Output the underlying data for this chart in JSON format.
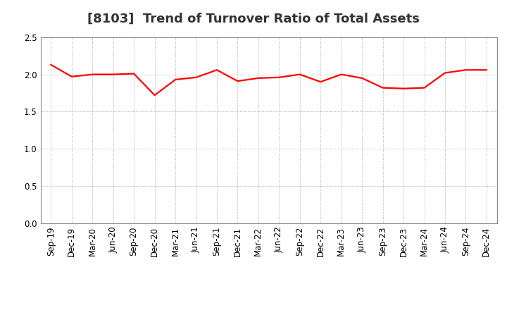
{
  "title": "[8103]  Trend of Turnover Ratio of Total Assets",
  "x_labels": [
    "Sep-19",
    "Dec-19",
    "Mar-20",
    "Jun-20",
    "Sep-20",
    "Dec-20",
    "Mar-21",
    "Jun-21",
    "Sep-21",
    "Dec-21",
    "Mar-22",
    "Jun-22",
    "Sep-22",
    "Dec-22",
    "Mar-23",
    "Jun-23",
    "Sep-23",
    "Dec-23",
    "Mar-24",
    "Jun-24",
    "Sep-24",
    "Dec-24"
  ],
  "values": [
    2.13,
    1.97,
    2.0,
    2.0,
    2.01,
    1.72,
    1.93,
    1.96,
    2.06,
    1.91,
    1.95,
    1.96,
    2.0,
    1.9,
    2.0,
    1.95,
    1.82,
    1.81,
    1.82,
    2.02,
    2.06,
    2.06
  ],
  "line_color": "#ff0000",
  "line_width": 1.6,
  "ylim": [
    0.0,
    2.5
  ],
  "yticks": [
    0.0,
    0.5,
    1.0,
    1.5,
    2.0,
    2.5
  ],
  "background_color": "#ffffff",
  "grid_color": "#999999",
  "title_fontsize": 13,
  "tick_fontsize": 8.5
}
